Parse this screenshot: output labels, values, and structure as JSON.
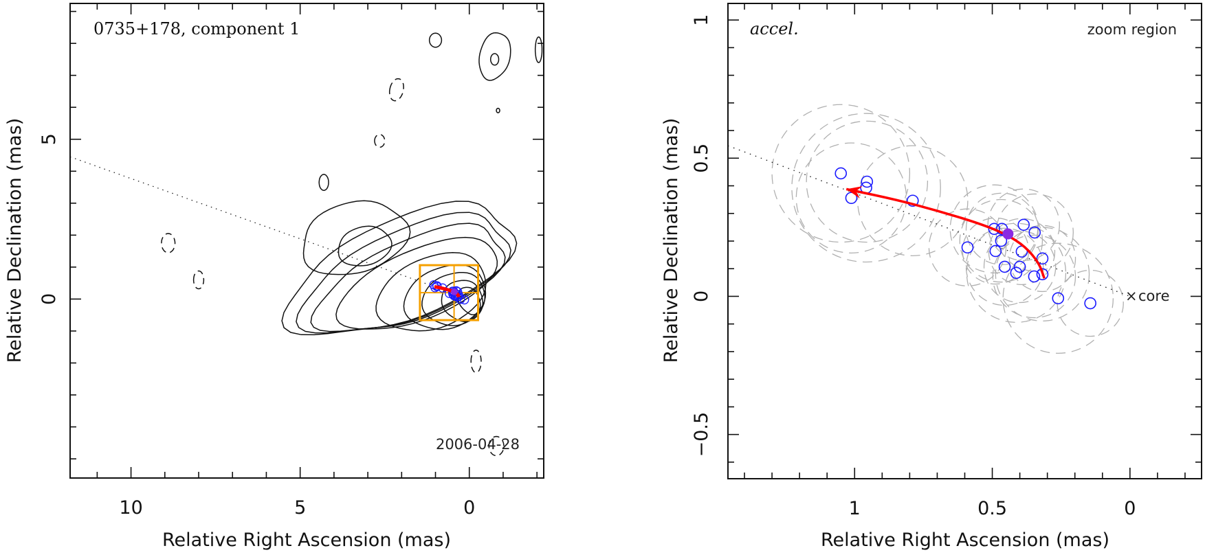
{
  "chart_data": [
    {
      "type": "scatter",
      "panel": "left",
      "title": "0735+178, component 1",
      "annotation": "2006-04-28",
      "xlabel": "Relative Right Ascension (mas)",
      "ylabel": "Relative Declination (mas)",
      "xlim": [
        11.8,
        -2.2
      ],
      "ylim": [
        -5.6,
        9.25
      ],
      "x_ticks": [
        10,
        5,
        0
      ],
      "x_tick_labels": [
        "10",
        "5",
        "0"
      ],
      "y_ticks": [
        5,
        0
      ],
      "y_tick_labels": [
        "5",
        "0"
      ],
      "x_minor_step": 1,
      "y_minor_step": 1,
      "description": "Radio contour map (solid positive, dashed negative contours) with jet direction dotted line, component positions (blue circles), fitted trajectory (red) and zoom region box (orange)",
      "jet_line": {
        "from": [
          11.8,
          4.45
        ],
        "to": [
          0,
          0
        ]
      },
      "zoom_box": {
        "x": [
          1.46,
          -0.26
        ],
        "y": [
          -0.66,
          1.06
        ],
        "center_lines": {
          "x": 0.45,
          "y": 0.2
        }
      },
      "colors": {
        "contour": "#111111",
        "component": "#1a1aff",
        "trajectory": "#ff0000",
        "zoom_box": "#f5a000",
        "mean": "#8a2be2",
        "jet_line": "#222222"
      }
    },
    {
      "type": "scatter",
      "panel": "right",
      "title": "accel.",
      "label_top_right": "zoom region",
      "core_label": "core",
      "core_marker": "×",
      "xlabel": "Relative Right Ascension (mas)",
      "ylabel": "Relative Declination (mas)",
      "xlim": [
        1.46,
        -0.26
      ],
      "ylim": [
        -0.66,
        1.06
      ],
      "x_ticks": [
        1,
        0.5,
        0
      ],
      "x_tick_labels": [
        "1",
        "0.5",
        "0"
      ],
      "y_ticks": [
        1,
        0.5,
        0,
        -0.5
      ],
      "y_tick_labels": [
        "1",
        "0.5",
        "0",
        "−0.5"
      ],
      "x_minor_step": 0.1,
      "y_minor_step": 0.1,
      "jet_line": {
        "from": [
          1.46,
          0.545
        ],
        "to": [
          0,
          0
        ]
      },
      "components": [
        {
          "x": 1.05,
          "y": 0.445
        },
        {
          "x": 0.955,
          "y": 0.415
        },
        {
          "x": 0.958,
          "y": 0.393
        },
        {
          "x": 1.012,
          "y": 0.356
        },
        {
          "x": 0.789,
          "y": 0.346
        },
        {
          "x": 0.59,
          "y": 0.177
        },
        {
          "x": 0.493,
          "y": 0.244
        },
        {
          "x": 0.465,
          "y": 0.244
        },
        {
          "x": 0.468,
          "y": 0.201
        },
        {
          "x": 0.488,
          "y": 0.164
        },
        {
          "x": 0.386,
          "y": 0.259
        },
        {
          "x": 0.346,
          "y": 0.231
        },
        {
          "x": 0.393,
          "y": 0.162
        },
        {
          "x": 0.318,
          "y": 0.137
        },
        {
          "x": 0.455,
          "y": 0.107
        },
        {
          "x": 0.4,
          "y": 0.107
        },
        {
          "x": 0.413,
          "y": 0.085
        },
        {
          "x": 0.348,
          "y": 0.072
        },
        {
          "x": 0.318,
          "y": 0.08
        },
        {
          "x": 0.261,
          "y": -0.007
        },
        {
          "x": 0.144,
          "y": -0.025
        }
      ],
      "mean_position": {
        "x": 0.443,
        "y": 0.226
      },
      "uncertainty_circles": [
        {
          "x": 1.05,
          "y": 0.445,
          "r": 0.25
        },
        {
          "x": 0.955,
          "y": 0.415,
          "r": 0.22
        },
        {
          "x": 0.958,
          "y": 0.393,
          "r": 0.27
        },
        {
          "x": 1.012,
          "y": 0.356,
          "r": 0.2
        },
        {
          "x": 0.789,
          "y": 0.346,
          "r": 0.2
        },
        {
          "x": 0.59,
          "y": 0.177,
          "r": 0.14
        },
        {
          "x": 0.493,
          "y": 0.244,
          "r": 0.16
        },
        {
          "x": 0.465,
          "y": 0.244,
          "r": 0.13
        },
        {
          "x": 0.468,
          "y": 0.201,
          "r": 0.15
        },
        {
          "x": 0.488,
          "y": 0.164,
          "r": 0.12
        },
        {
          "x": 0.386,
          "y": 0.259,
          "r": 0.13
        },
        {
          "x": 0.346,
          "y": 0.231,
          "r": 0.14
        },
        {
          "x": 0.393,
          "y": 0.162,
          "r": 0.12
        },
        {
          "x": 0.318,
          "y": 0.137,
          "r": 0.12
        },
        {
          "x": 0.455,
          "y": 0.107,
          "r": 0.14
        },
        {
          "x": 0.4,
          "y": 0.107,
          "r": 0.13
        },
        {
          "x": 0.413,
          "y": 0.085,
          "r": 0.18
        },
        {
          "x": 0.348,
          "y": 0.072,
          "r": 0.15
        },
        {
          "x": 0.318,
          "y": 0.08,
          "r": 0.17
        },
        {
          "x": 0.261,
          "y": -0.007,
          "r": 0.2
        },
        {
          "x": 0.144,
          "y": -0.025,
          "r": 0.12
        }
      ],
      "trajectory": [
        {
          "x": 0.311,
          "y": 0.065
        },
        {
          "x": 0.33,
          "y": 0.12
        },
        {
          "x": 0.38,
          "y": 0.18
        },
        {
          "x": 0.45,
          "y": 0.225
        },
        {
          "x": 0.55,
          "y": 0.265
        },
        {
          "x": 0.7,
          "y": 0.31
        },
        {
          "x": 0.85,
          "y": 0.35
        },
        {
          "x": 1.03,
          "y": 0.388
        }
      ],
      "colors": {
        "component": "#1a1aff",
        "uncertainty": "#b0b0b0",
        "trajectory": "#ff0000",
        "mean": "#8a2be2",
        "jet_line": "#222222"
      }
    }
  ]
}
